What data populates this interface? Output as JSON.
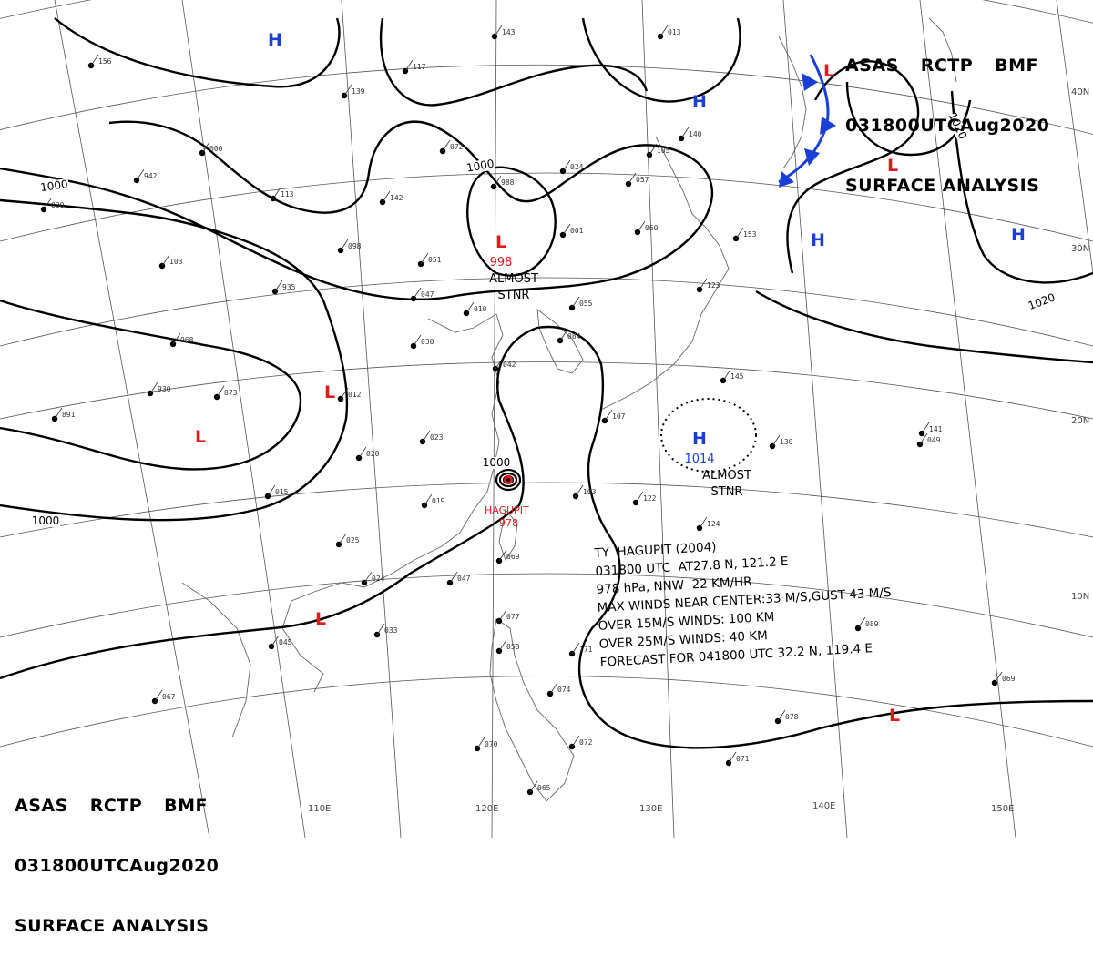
{
  "header_top": {
    "line1": [
      "ASAS",
      "RCTP",
      "BMF"
    ],
    "line2": [
      "031800UTC",
      "Aug",
      "2020"
    ],
    "line3": "SURFACE ANALYSIS"
  },
  "header_bottom": {
    "line1": [
      "ASAS",
      "RCTP",
      "BMF"
    ],
    "line2": [
      "031800UTC",
      "Aug",
      "2020"
    ],
    "line3": "SURFACE ANALYSIS"
  },
  "lat_labels": [
    "40N",
    "30N",
    "20N",
    "10N"
  ],
  "lon_labels": [
    "110E",
    "120E",
    "130E",
    "140E",
    "150E"
  ],
  "isobars": [
    "1000",
    "1000",
    "1000",
    "1000",
    "1020",
    "1020"
  ],
  "pressure_centers": [
    {
      "type": "H",
      "color": "#1a3fd6"
    },
    {
      "type": "H",
      "color": "#1a3fd6"
    },
    {
      "type": "H",
      "color": "#1a3fd6"
    },
    {
      "type": "H",
      "color": "#1a3fd6"
    },
    {
      "type": "H",
      "color": "#1a3fd6",
      "value": "1014",
      "note": [
        "ALMOST",
        "STNR"
      ]
    },
    {
      "type": "L",
      "color": "#e01b1b",
      "value": "998",
      "note": [
        "ALMOST",
        "STNR"
      ]
    },
    {
      "type": "L",
      "color": "#e01b1b"
    },
    {
      "type": "L",
      "color": "#e01b1b"
    },
    {
      "type": "L",
      "color": "#e01b1b"
    },
    {
      "type": "L",
      "color": "#e01b1b"
    },
    {
      "type": "L",
      "color": "#e01b1b"
    },
    {
      "type": "L",
      "color": "#e01b1b"
    }
  ],
  "typhoon": {
    "name": "HAGUPIT",
    "pressure": "978",
    "color": "#e01b1b"
  },
  "typhoon_box": {
    "line1": "TY  HAGUPIT (2004)",
    "line2": "031800 UTC  AT27.8 N, 121.2 E",
    "line3": "978 hPa, NNW  22 KM/HR",
    "line4": "MAX WINDS NEAR CENTER:33 M/S,GUST 43 M/S",
    "line5": "OVER 15M/S WINDS: 100 KM",
    "line6": "OVER 25M/S WINDS: 40 KM",
    "line7": "FORECAST FOR 041800 UTC 32.2 N, 119.4 E"
  },
  "stations": [
    "143",
    "117",
    "139",
    "072",
    "024",
    "988",
    "113",
    "142",
    "098",
    "051",
    "047",
    "010",
    "001",
    "057",
    "060",
    "105",
    "140",
    "153",
    "123",
    "055",
    "084",
    "042",
    "030",
    "012",
    "023",
    "020",
    "019",
    "015",
    "025",
    "024",
    "033",
    "045",
    "067",
    "047",
    "069",
    "077",
    "058",
    "074",
    "072",
    "070",
    "065",
    "071",
    "078",
    "089",
    "069",
    "141",
    "130",
    "124",
    "122",
    "103",
    "107",
    "145",
    "171",
    "103",
    "935",
    "968",
    "930",
    "873",
    "891",
    "942",
    "030",
    "049",
    "000",
    "013",
    "156"
  ],
  "colors": {
    "blue": "#1a3fd6",
    "red": "#e01b1b",
    "front": "#1a3fd6"
  }
}
